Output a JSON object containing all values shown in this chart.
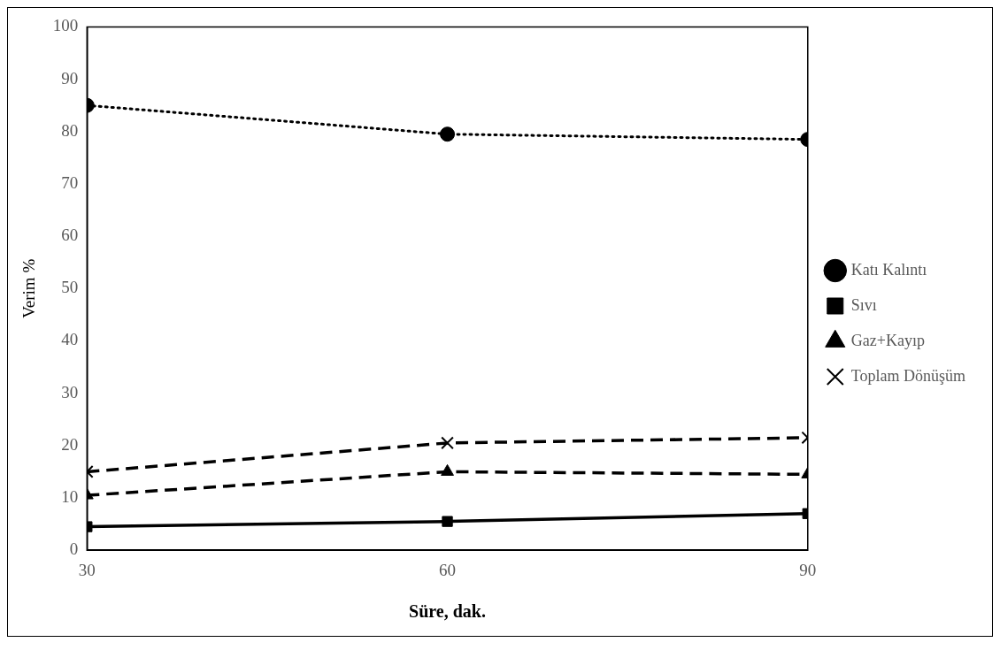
{
  "chart_data": {
    "type": "line",
    "xlabel": "Süre, dak.",
    "ylabel": "Verim %",
    "x": [
      30,
      60,
      90
    ],
    "series": [
      {
        "name": "Katı Kalıntı",
        "color": "#000000",
        "values": [
          85,
          79.5,
          78.5
        ],
        "marker": "circle",
        "line_style": "dotted"
      },
      {
        "name": "Sıvı",
        "color": "#000000",
        "values": [
          4.5,
          5.5,
          7
        ],
        "marker": "square",
        "line_style": "solid"
      },
      {
        "name": "Gaz+Kayıp",
        "color": "#000000",
        "values": [
          10.5,
          15,
          14.5
        ],
        "marker": "triangle",
        "line_style": "dashed"
      },
      {
        "name": "Toplam Dönüşüm",
        "color": "#000000",
        "values": [
          15,
          20.5,
          21.5
        ],
        "marker": "cross",
        "line_style": "dashed"
      }
    ],
    "xlim": [
      30,
      90
    ],
    "xticks": [
      30,
      60,
      90
    ],
    "ylim": [
      0,
      100
    ],
    "yticks": [
      0,
      10,
      20,
      30,
      40,
      50,
      60,
      70,
      80,
      90,
      100
    ],
    "grid": false,
    "legend": "right"
  }
}
